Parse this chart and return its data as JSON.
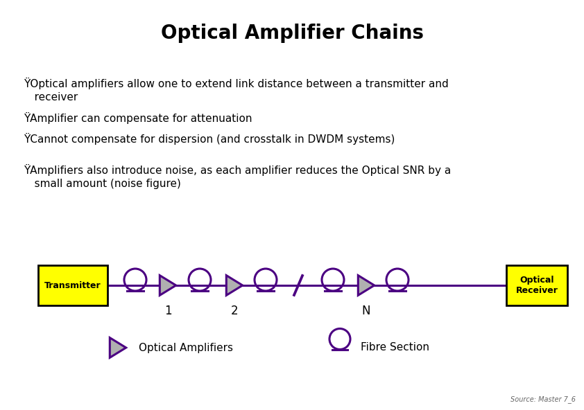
{
  "title": "Optical Amplifier Chains",
  "title_fontsize": 20,
  "title_fontweight": "bold",
  "background_color": "#ffffff",
  "bullet_symbol": "Ÿ",
  "bullets": [
    "Optical amplifiers allow one to extend link distance between a transmitter and\n  receiver",
    "Amplifier can compensate for attenuation",
    "Cannot compensate for dispersion (and crosstalk in DWDM systems)",
    "Amplifiers also introduce noise, as each amplifier reduces the Optical SNR by a\n  small amount (noise figure)"
  ],
  "bullet_fontsize": 11,
  "box_fill": "#ffff00",
  "box_edge": "#000000",
  "amplifier_fill": "#b0b0b0",
  "source_text": "Source: Master 7_6",
  "legend_amp_label": "Optical Amplifiers",
  "legend_fibre_label": "Fibre Section",
  "transmitter_label": "Transmitter",
  "receiver_label": "Optical\nReceiver",
  "purple": "#4B0082",
  "lw": 2.2,
  "fig_w": 8.42,
  "fig_h": 5.92,
  "dpi": 100
}
